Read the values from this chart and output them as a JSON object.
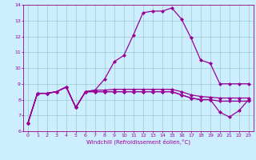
{
  "xlabel": "Windchill (Refroidissement éolien,°C)",
  "bg_color": "#cceeff",
  "line_color": "#990099",
  "grid_color": "#99cccc",
  "hours": [
    0,
    1,
    2,
    3,
    4,
    5,
    6,
    7,
    8,
    9,
    10,
    11,
    12,
    13,
    14,
    15,
    16,
    17,
    18,
    19,
    20,
    21,
    22,
    23
  ],
  "line1": [
    6.5,
    8.4,
    8.4,
    8.5,
    8.8,
    7.5,
    8.5,
    8.6,
    9.3,
    10.4,
    10.8,
    12.1,
    13.5,
    13.6,
    13.6,
    13.8,
    13.1,
    11.9,
    10.5,
    10.3,
    9.0,
    9.0,
    9.0,
    9.0
  ],
  "line2": [
    6.5,
    8.4,
    8.4,
    8.5,
    8.8,
    7.5,
    8.5,
    8.6,
    8.6,
    8.65,
    8.65,
    8.65,
    8.65,
    8.65,
    8.65,
    8.65,
    8.5,
    8.3,
    8.2,
    8.15,
    8.1,
    8.1,
    8.1,
    8.1
  ],
  "line3": [
    6.5,
    8.4,
    8.4,
    8.5,
    8.8,
    7.5,
    8.5,
    8.5,
    8.5,
    8.5,
    8.5,
    8.5,
    8.5,
    8.5,
    8.5,
    8.5,
    8.3,
    8.1,
    8.0,
    8.0,
    7.9,
    7.9,
    7.9,
    7.9
  ],
  "line4": [
    6.5,
    8.4,
    8.4,
    8.5,
    8.8,
    7.5,
    8.5,
    8.5,
    8.5,
    8.5,
    8.5,
    8.5,
    8.5,
    8.5,
    8.5,
    8.5,
    8.3,
    8.1,
    8.0,
    8.0,
    7.2,
    6.9,
    7.3,
    8.0
  ],
  "ylim": [
    6,
    14
  ],
  "xlim": [
    -0.5,
    23.5
  ],
  "yticks": [
    6,
    7,
    8,
    9,
    10,
    11,
    12,
    13,
    14
  ],
  "xticks": [
    0,
    1,
    2,
    3,
    4,
    5,
    6,
    7,
    8,
    9,
    10,
    11,
    12,
    13,
    14,
    15,
    16,
    17,
    18,
    19,
    20,
    21,
    22,
    23
  ],
  "markersize": 2.0,
  "linewidth": 0.9
}
